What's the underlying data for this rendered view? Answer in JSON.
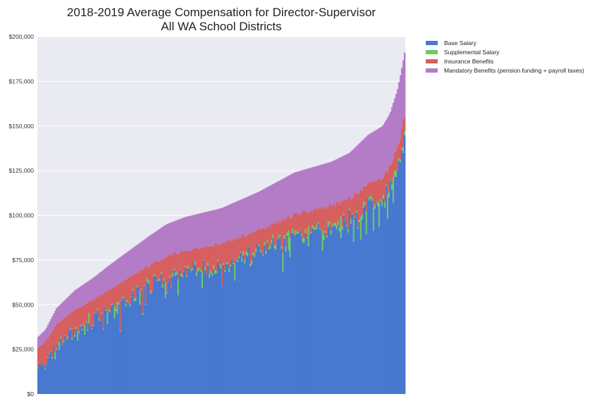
{
  "chart_data": {
    "type": "bar",
    "stacked": true,
    "title_lines": [
      "2018-2019 Average Compensation for Director-Supervisor",
      "All WA School Districts"
    ],
    "xlabel": "",
    "ylabel": "",
    "ylim": [
      0,
      200000
    ],
    "yticks": [
      0,
      25000,
      50000,
      75000,
      100000,
      125000,
      150000,
      175000,
      200000
    ],
    "ytick_labels": [
      "$0",
      "$25,000",
      "$50,000",
      "$75,000",
      "$100,000",
      "$125,000",
      "$150,000",
      "$175,000",
      "$200,000"
    ],
    "x_tick_labels_visible": false,
    "grid": true,
    "legend_position": "outside-top-right",
    "background_color": "#eaeaf2",
    "n_bars": 260,
    "sorted_by": "total ascending",
    "series": [
      {
        "name": "Base Salary",
        "color": "#4878cf"
      },
      {
        "name": "Supplemental Salary",
        "color": "#6acc65"
      },
      {
        "name": "Insurance Benefits",
        "color": "#d65f5f"
      },
      {
        "name": "Mandatory Benefits (pension funding + payroll taxes)",
        "color": "#b47cc7"
      }
    ],
    "total_profile": {
      "positions": [
        0,
        0.02,
        0.05,
        0.1,
        0.15,
        0.2,
        0.3,
        0.35,
        0.4,
        0.5,
        0.6,
        0.7,
        0.8,
        0.85,
        0.9,
        0.94,
        0.96,
        0.98,
        0.99,
        1.0
      ],
      "totals": [
        32000,
        36000,
        48000,
        58000,
        65000,
        73000,
        88000,
        95000,
        99000,
        104000,
        113000,
        124000,
        130000,
        135000,
        145000,
        150000,
        157000,
        170000,
        180000,
        191000
      ]
    },
    "typical_composition": {
      "base_salary_avg_share": 0.73,
      "supplemental_salary_avg_share": 0.015,
      "insurance_benefits_avg": 11000,
      "mandatory_benefits_avg_share": 0.19
    }
  }
}
